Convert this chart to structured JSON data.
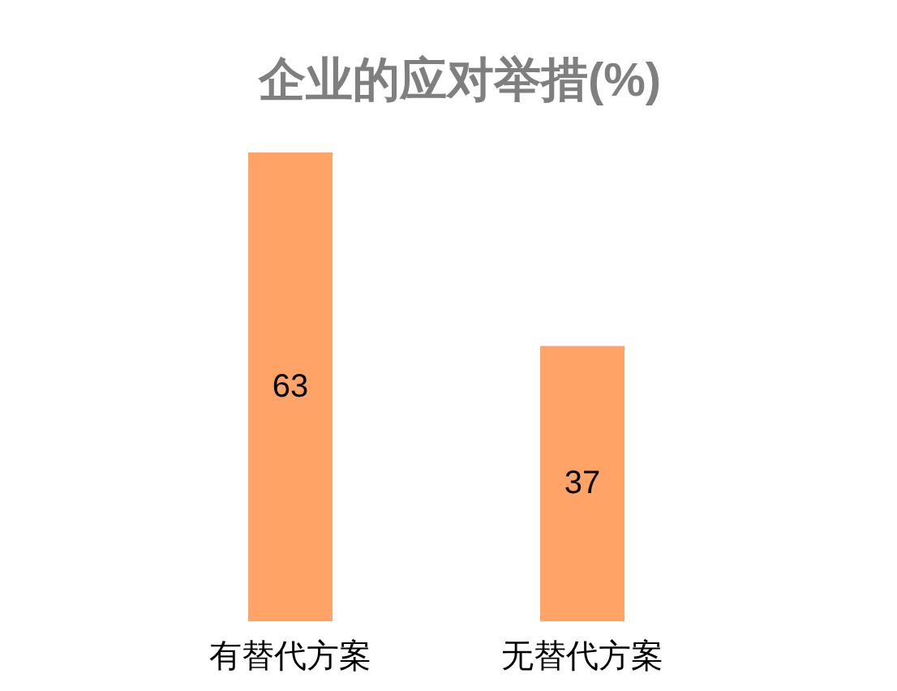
{
  "chart_data": {
    "type": "bar",
    "title": "企业的应对举措(%)",
    "categories": [
      "有替代方案",
      "无替代方案"
    ],
    "values": [
      63,
      37
    ],
    "color": "#ffa366",
    "data_labels": true
  }
}
